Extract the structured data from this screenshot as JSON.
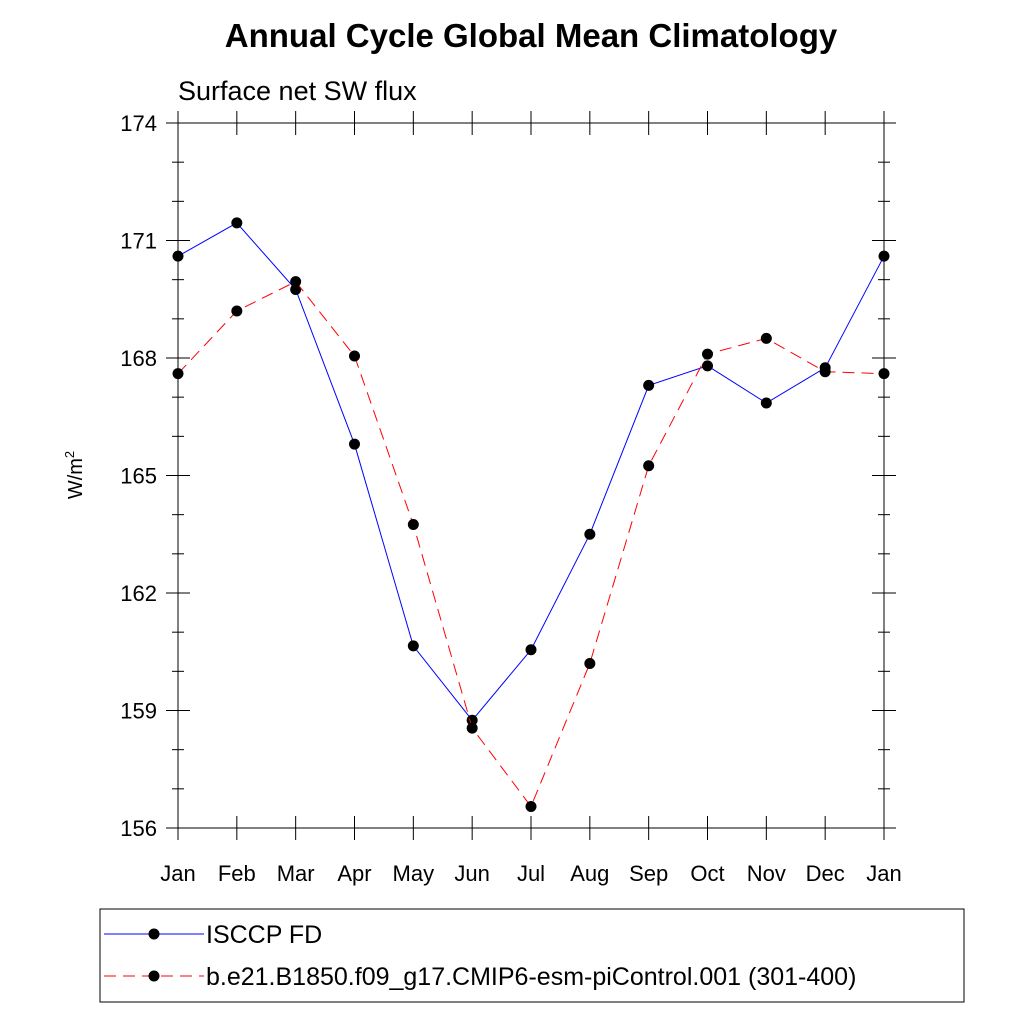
{
  "chart_data": {
    "type": "line",
    "title": "Annual Cycle Global Mean Climatology",
    "subtitle": "Surface net SW flux",
    "ylabel": "W/m",
    "ylabel_superscript": "2",
    "xlabel": "",
    "categories": [
      "Jan",
      "Feb",
      "Mar",
      "Apr",
      "May",
      "Jun",
      "Jul",
      "Aug",
      "Sep",
      "Oct",
      "Nov",
      "Dec",
      "Jan"
    ],
    "ylim": [
      156,
      174
    ],
    "yticks": [
      156,
      159,
      162,
      165,
      168,
      171,
      174
    ],
    "grid": false,
    "legend_position": "bottom",
    "series": [
      {
        "name": "ISCCP FD",
        "color": "#0000ff",
        "dash": "solid",
        "marker": "filled-circle",
        "values": [
          170.6,
          171.45,
          169.75,
          165.8,
          160.65,
          158.75,
          160.55,
          163.5,
          167.3,
          167.8,
          166.85,
          167.75,
          170.6
        ]
      },
      {
        "name": "b.e21.B1850.f09_g17.CMIP6-esm-piControl.001 (301-400)",
        "color": "#ff0000",
        "dash": "dashed",
        "marker": "filled-circle",
        "values": [
          167.6,
          169.2,
          169.95,
          168.05,
          163.75,
          158.55,
          156.55,
          160.2,
          165.25,
          168.1,
          168.5,
          167.65,
          167.6
        ]
      }
    ]
  }
}
